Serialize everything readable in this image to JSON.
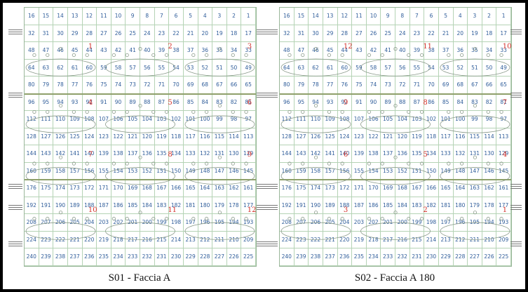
{
  "panels": [
    {
      "id": "s01",
      "caption": "S01 - Faccia A",
      "rows": [
        [
          "16",
          "15",
          "14",
          "13",
          "12",
          "11",
          "10",
          "9",
          "8",
          "7",
          "6",
          "5",
          "4",
          "3",
          "2",
          "1"
        ],
        [
          "32",
          "31",
          "30",
          "29",
          "28",
          "27",
          "26",
          "25",
          "24",
          "23",
          "22",
          "21",
          "20",
          "19",
          "18",
          "17"
        ],
        [
          "48",
          "47",
          "46",
          "45",
          "44",
          "43",
          "42",
          "41",
          "40",
          "39",
          "38",
          "37",
          "36",
          "35",
          "34",
          "33"
        ],
        [
          "64",
          "63",
          "62",
          "61",
          "60",
          "59",
          "58",
          "57",
          "56",
          "55",
          "54",
          "53",
          "52",
          "51",
          "50",
          "49"
        ],
        [
          "80",
          "79",
          "78",
          "77",
          "76",
          "75",
          "74",
          "73",
          "72",
          "71",
          "70",
          "69",
          "68",
          "67",
          "66",
          "65"
        ],
        [
          "96",
          "95",
          "94",
          "93",
          "92",
          "91",
          "90",
          "89",
          "88",
          "87",
          "86",
          "85",
          "84",
          "83",
          "82",
          "81"
        ],
        [
          "112",
          "111",
          "110",
          "109",
          "108",
          "107",
          "106",
          "105",
          "104",
          "103",
          "102",
          "101",
          "100",
          "99",
          "98",
          "97"
        ],
        [
          "128",
          "127",
          "126",
          "125",
          "124",
          "123",
          "122",
          "121",
          "120",
          "119",
          "118",
          "117",
          "116",
          "115",
          "114",
          "113"
        ],
        [
          "144",
          "143",
          "142",
          "141",
          "140",
          "139",
          "138",
          "137",
          "136",
          "135",
          "134",
          "133",
          "132",
          "131",
          "130",
          "129"
        ],
        [
          "160",
          "159",
          "158",
          "157",
          "156",
          "155",
          "154",
          "153",
          "152",
          "151",
          "150",
          "149",
          "148",
          "147",
          "146",
          "145"
        ],
        [
          "176",
          "175",
          "174",
          "173",
          "172",
          "171",
          "170",
          "169",
          "168",
          "167",
          "166",
          "165",
          "164",
          "163",
          "162",
          "161"
        ],
        [
          "192",
          "191",
          "190",
          "189",
          "188",
          "187",
          "186",
          "185",
          "184",
          "183",
          "182",
          "181",
          "180",
          "179",
          "178",
          "177"
        ],
        [
          "208",
          "207",
          "206",
          "205",
          "204",
          "203",
          "202",
          "201",
          "200",
          "199",
          "198",
          "197",
          "196",
          "195",
          "194",
          "193"
        ],
        [
          "224",
          "223",
          "222",
          "221",
          "220",
          "219",
          "218",
          "217",
          "216",
          "215",
          "214",
          "213",
          "212",
          "211",
          "210",
          "209"
        ],
        [
          "240",
          "239",
          "238",
          "237",
          "236",
          "235",
          "234",
          "233",
          "232",
          "231",
          "230",
          "229",
          "228",
          "227",
          "226",
          "225"
        ]
      ],
      "labels": [
        "1",
        "2",
        "3",
        "4",
        "5",
        "6",
        "7",
        "8",
        "9",
        "10",
        "11",
        "12"
      ]
    },
    {
      "id": "s02",
      "caption": "S02 - Faccia A 180",
      "rows": [
        [
          "16",
          "15",
          "14",
          "13",
          "12",
          "11",
          "10",
          "9",
          "8",
          "7",
          "6",
          "5",
          "4",
          "3",
          "2",
          "1"
        ],
        [
          "32",
          "31",
          "30",
          "29",
          "28",
          "27",
          "26",
          "25",
          "24",
          "23",
          "22",
          "21",
          "20",
          "19",
          "18",
          "17"
        ],
        [
          "48",
          "47",
          "46",
          "45",
          "44",
          "43",
          "42",
          "41",
          "40",
          "39",
          "38",
          "37",
          "36",
          "35",
          "34",
          "33"
        ],
        [
          "64",
          "63",
          "62",
          "61",
          "60",
          "59",
          "58",
          "57",
          "56",
          "55",
          "54",
          "53",
          "52",
          "51",
          "50",
          "49"
        ],
        [
          "80",
          "79",
          "78",
          "77",
          "76",
          "75",
          "74",
          "73",
          "72",
          "71",
          "70",
          "69",
          "68",
          "67",
          "66",
          "65"
        ],
        [
          "96",
          "95",
          "94",
          "93",
          "92",
          "91",
          "90",
          "89",
          "88",
          "87",
          "86",
          "85",
          "84",
          "83",
          "82",
          "81"
        ],
        [
          "112",
          "111",
          "110",
          "109",
          "108",
          "107",
          "106",
          "105",
          "104",
          "103",
          "102",
          "101",
          "100",
          "99",
          "98",
          "97"
        ],
        [
          "128",
          "127",
          "126",
          "125",
          "124",
          "123",
          "122",
          "121",
          "120",
          "119",
          "118",
          "117",
          "116",
          "115",
          "114",
          "113"
        ],
        [
          "144",
          "143",
          "142",
          "141",
          "140",
          "139",
          "138",
          "137",
          "136",
          "135",
          "134",
          "133",
          "132",
          "131",
          "130",
          "129"
        ],
        [
          "160",
          "159",
          "158",
          "157",
          "156",
          "155",
          "154",
          "153",
          "152",
          "151",
          "150",
          "149",
          "148",
          "147",
          "146",
          "145"
        ],
        [
          "176",
          "175",
          "174",
          "173",
          "172",
          "171",
          "170",
          "169",
          "168",
          "167",
          "166",
          "165",
          "164",
          "163",
          "162",
          "161"
        ],
        [
          "192",
          "191",
          "190",
          "189",
          "188",
          "187",
          "186",
          "185",
          "184",
          "183",
          "182",
          "181",
          "180",
          "179",
          "178",
          "177"
        ],
        [
          "208",
          "207",
          "206",
          "205",
          "204",
          "203",
          "202",
          "201",
          "200",
          "199",
          "198",
          "197",
          "196",
          "195",
          "194",
          "193"
        ],
        [
          "224",
          "223",
          "222",
          "221",
          "220",
          "219",
          "218",
          "217",
          "216",
          "215",
          "214",
          "213",
          "212",
          "211",
          "210",
          "209"
        ],
        [
          "240",
          "239",
          "238",
          "237",
          "236",
          "235",
          "234",
          "233",
          "232",
          "231",
          "230",
          "229",
          "228",
          "227",
          "226",
          "225"
        ]
      ],
      "labels": [
        "12",
        "11",
        "10",
        "9",
        "8",
        "7",
        "6",
        "5",
        "4",
        "3",
        "2",
        "1"
      ]
    }
  ],
  "colors": {
    "cell_text": "#2f5d9a",
    "grid_line": "#b5d3b5",
    "band": "#8fa06a",
    "label": "#d4302a"
  }
}
